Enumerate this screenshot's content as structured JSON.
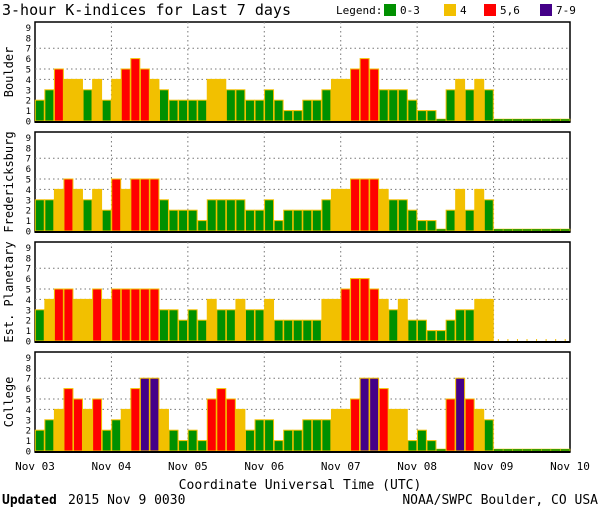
{
  "chart_data": {
    "type": "bar",
    "title": "3-hour K-indices for Last 7 days",
    "legend_title": "Legend:",
    "legend": [
      {
        "label": "0-3",
        "color": "#009000"
      },
      {
        "label": "4",
        "color": "#f2c000"
      },
      {
        "label": "5,6",
        "color": "#ff0000"
      },
      {
        "label": "7-9",
        "color": "#440088"
      }
    ],
    "legend_placement": "top-right",
    "xlabel": "Coordinate Universal Time (UTC)",
    "x_ticks": [
      "Nov 03",
      "Nov 04",
      "Nov 05",
      "Nov 06",
      "Nov 07",
      "Nov 08",
      "Nov 09",
      "Nov 10"
    ],
    "y_ticks": [
      "0",
      "1",
      "2",
      "3",
      "4",
      "5",
      "6",
      "7",
      "8",
      "9"
    ],
    "ylim": [
      0,
      9
    ],
    "interval_hours": 3,
    "series": [
      {
        "name": "Boulder",
        "values": [
          2,
          3,
          5,
          4,
          4,
          3,
          4,
          2,
          4,
          5,
          6,
          5,
          4,
          3,
          2,
          2,
          2,
          2,
          4,
          4,
          3,
          3,
          2,
          2,
          3,
          2,
          1,
          1,
          2,
          2,
          3,
          4,
          4,
          5,
          6,
          5,
          3,
          3,
          3,
          2,
          1,
          1,
          0,
          3,
          4,
          3,
          4,
          3
        ],
        "future_baseline": true
      },
      {
        "name": "Fredericksburg",
        "values": [
          3,
          3,
          4,
          5,
          4,
          3,
          4,
          2,
          5,
          4,
          5,
          5,
          5,
          3,
          2,
          2,
          2,
          1,
          3,
          3,
          3,
          3,
          2,
          2,
          3,
          1,
          2,
          2,
          2,
          2,
          3,
          4,
          4,
          5,
          5,
          5,
          4,
          3,
          3,
          2,
          1,
          1,
          0,
          2,
          4,
          2,
          4,
          3
        ],
        "future_baseline": true
      },
      {
        "name": "Est. Planetary",
        "values": [
          3,
          4,
          5,
          5,
          4,
          4,
          5,
          4,
          5,
          5,
          5,
          5,
          5,
          3,
          3,
          2,
          3,
          2,
          4,
          3,
          3,
          4,
          3,
          3,
          4,
          2,
          2,
          2,
          2,
          2,
          4,
          4,
          5,
          6,
          6,
          5,
          4,
          3,
          4,
          2,
          2,
          1,
          1,
          2,
          3,
          3,
          4,
          4
        ],
        "future_baseline": false
      },
      {
        "name": "College",
        "values": [
          2,
          3,
          4,
          6,
          5,
          4,
          5,
          2,
          3,
          4,
          6,
          7,
          7,
          4,
          2,
          1,
          2,
          1,
          5,
          6,
          5,
          4,
          2,
          3,
          3,
          1,
          2,
          2,
          3,
          3,
          3,
          4,
          4,
          5,
          7,
          7,
          6,
          4,
          4,
          1,
          2,
          1,
          0,
          5,
          7,
          5,
          4,
          3
        ],
        "future_baseline": true
      }
    ]
  },
  "footer": {
    "updated_label": "Updated",
    "updated_value": "2015 Nov  9 0030",
    "source": "NOAA/SWPC Boulder, CO USA"
  }
}
